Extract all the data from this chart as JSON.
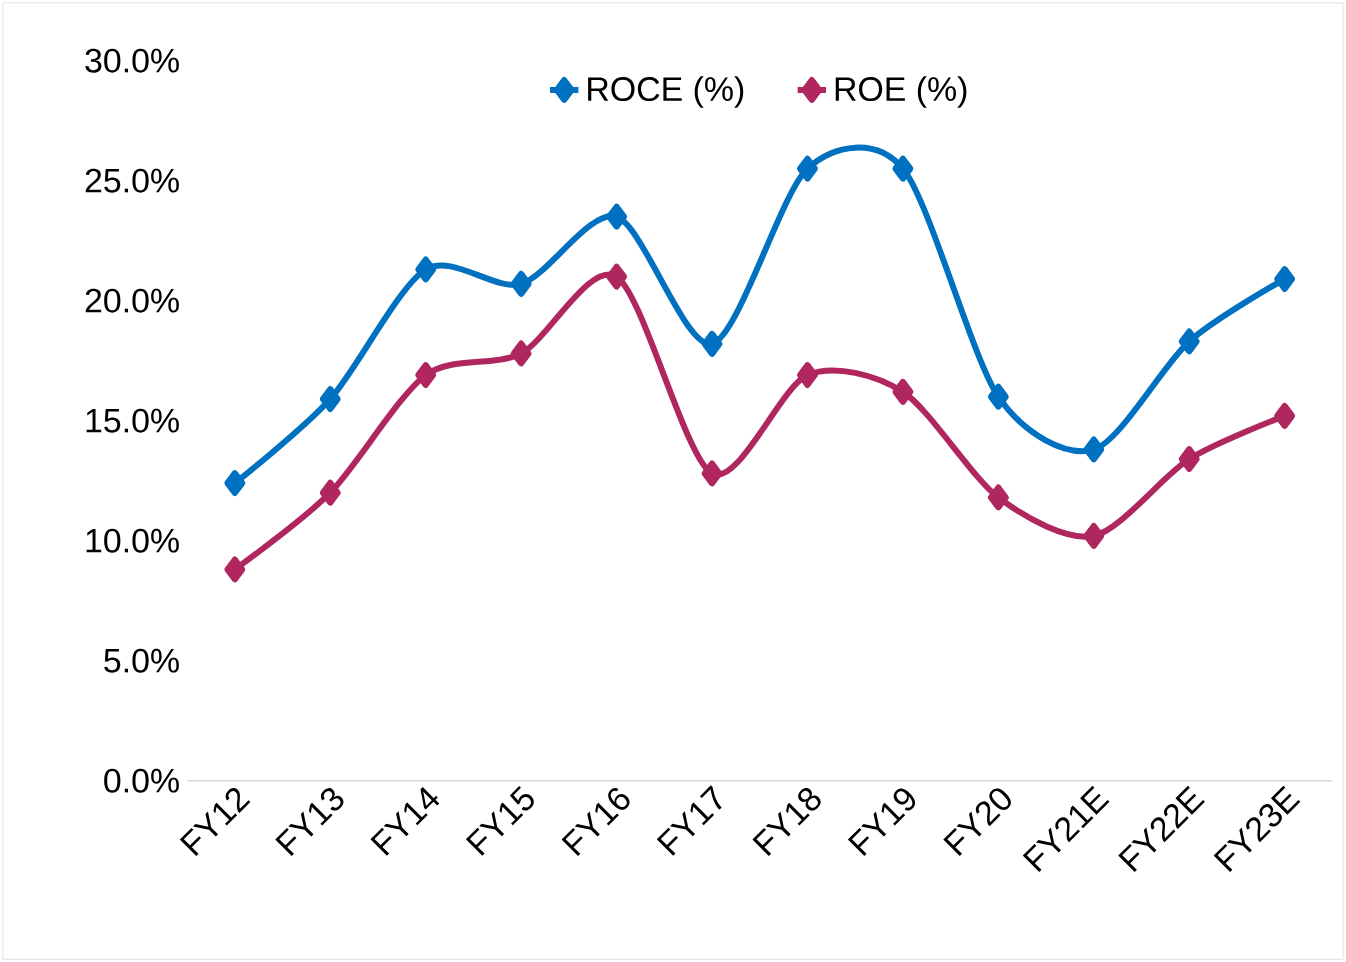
{
  "chart_data": {
    "type": "line",
    "categories": [
      "FY12",
      "FY13",
      "FY14",
      "FY15",
      "FY16",
      "FY17",
      "FY18",
      "FY19",
      "FY20",
      "FY21E",
      "FY22E",
      "FY23E"
    ],
    "series": [
      {
        "name": "ROCE (%)",
        "color": "#0070c0",
        "values": [
          12.4,
          15.9,
          21.3,
          20.7,
          23.5,
          18.2,
          25.5,
          25.5,
          16.0,
          13.8,
          18.3,
          20.9
        ]
      },
      {
        "name": "ROE (%)",
        "color": "#b0265e",
        "values": [
          8.8,
          12.0,
          16.9,
          17.8,
          21.0,
          12.8,
          16.9,
          16.2,
          11.8,
          10.2,
          13.4,
          15.2
        ]
      }
    ],
    "ylim": [
      0,
      30
    ],
    "yticks": [
      {
        "value": 0,
        "label": "0.0%"
      },
      {
        "value": 5,
        "label": "5.0%"
      },
      {
        "value": 10,
        "label": "10.0%"
      },
      {
        "value": 15,
        "label": "15.0%"
      },
      {
        "value": 20,
        "label": "20.0%"
      },
      {
        "value": 25,
        "label": "25.0%"
      },
      {
        "value": 30,
        "label": "30.0%"
      }
    ],
    "grid": false,
    "legend": "top",
    "marker": "diamond",
    "line_style": "solid"
  }
}
